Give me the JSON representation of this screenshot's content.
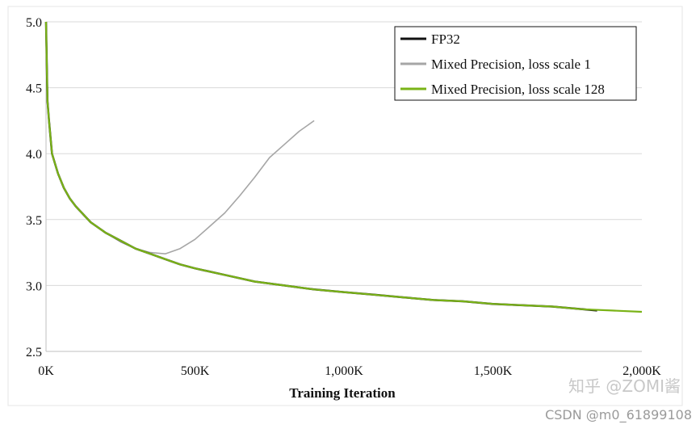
{
  "chart_data": {
    "type": "line",
    "title": "",
    "xlabel": "Training Iteration",
    "ylabel": "",
    "xlim": [
      0,
      2000
    ],
    "ylim": [
      2.5,
      5.0
    ],
    "x_unit": "K iterations",
    "x_ticks": [
      0,
      500,
      1000,
      1500,
      2000
    ],
    "x_tick_labels": [
      "0K",
      "500K",
      "1,000K",
      "1,500K",
      "2,000K"
    ],
    "y_ticks": [
      2.5,
      3.0,
      3.5,
      4.0,
      4.5,
      5.0
    ],
    "y_tick_labels": [
      "2.5",
      "3.0",
      "3.5",
      "4.0",
      "4.5",
      "5.0"
    ],
    "grid": "horizontal",
    "legend_position": "top-right",
    "series": [
      {
        "name": "FP32",
        "color": "#111111",
        "x": [
          0,
          5,
          10,
          20,
          40,
          60,
          80,
          100,
          150,
          200,
          250,
          300,
          350,
          400,
          450,
          500,
          600,
          700,
          800,
          900,
          1000,
          1100,
          1200,
          1300,
          1400,
          1500,
          1600,
          1700,
          1800,
          1850
        ],
        "y": [
          5.0,
          4.4,
          4.25,
          4.0,
          3.85,
          3.74,
          3.66,
          3.6,
          3.48,
          3.4,
          3.34,
          3.28,
          3.24,
          3.2,
          3.16,
          3.13,
          3.08,
          3.03,
          3.0,
          2.97,
          2.95,
          2.93,
          2.91,
          2.89,
          2.88,
          2.86,
          2.85,
          2.84,
          2.82,
          2.81
        ]
      },
      {
        "name": "Mixed Precision, loss scale 1",
        "color": "#a6a6a6",
        "x": [
          0,
          5,
          10,
          20,
          40,
          60,
          80,
          100,
          150,
          200,
          250,
          300,
          350,
          400,
          450,
          500,
          550,
          600,
          650,
          700,
          750,
          800,
          850,
          900
        ],
        "y": [
          5.0,
          4.4,
          4.25,
          4.0,
          3.85,
          3.74,
          3.66,
          3.6,
          3.48,
          3.4,
          3.33,
          3.28,
          3.25,
          3.24,
          3.28,
          3.35,
          3.45,
          3.55,
          3.68,
          3.82,
          3.97,
          4.07,
          4.17,
          4.25
        ]
      },
      {
        "name": "Mixed Precision, loss scale 128",
        "color": "#7ab317",
        "x": [
          0,
          5,
          10,
          20,
          40,
          60,
          80,
          100,
          150,
          200,
          250,
          300,
          350,
          400,
          450,
          500,
          600,
          700,
          800,
          900,
          1000,
          1100,
          1200,
          1300,
          1400,
          1500,
          1600,
          1700,
          1800,
          1900,
          2000
        ],
        "y": [
          5.0,
          4.4,
          4.25,
          4.0,
          3.85,
          3.74,
          3.66,
          3.6,
          3.48,
          3.4,
          3.34,
          3.28,
          3.24,
          3.2,
          3.16,
          3.13,
          3.08,
          3.03,
          3.0,
          2.97,
          2.95,
          2.93,
          2.91,
          2.89,
          2.88,
          2.86,
          2.85,
          2.84,
          2.82,
          2.81,
          2.8
        ]
      }
    ]
  },
  "watermarks": {
    "zhihu": "知乎 @ZOMI酱",
    "csdn": "CSDN @m0_61899108"
  }
}
